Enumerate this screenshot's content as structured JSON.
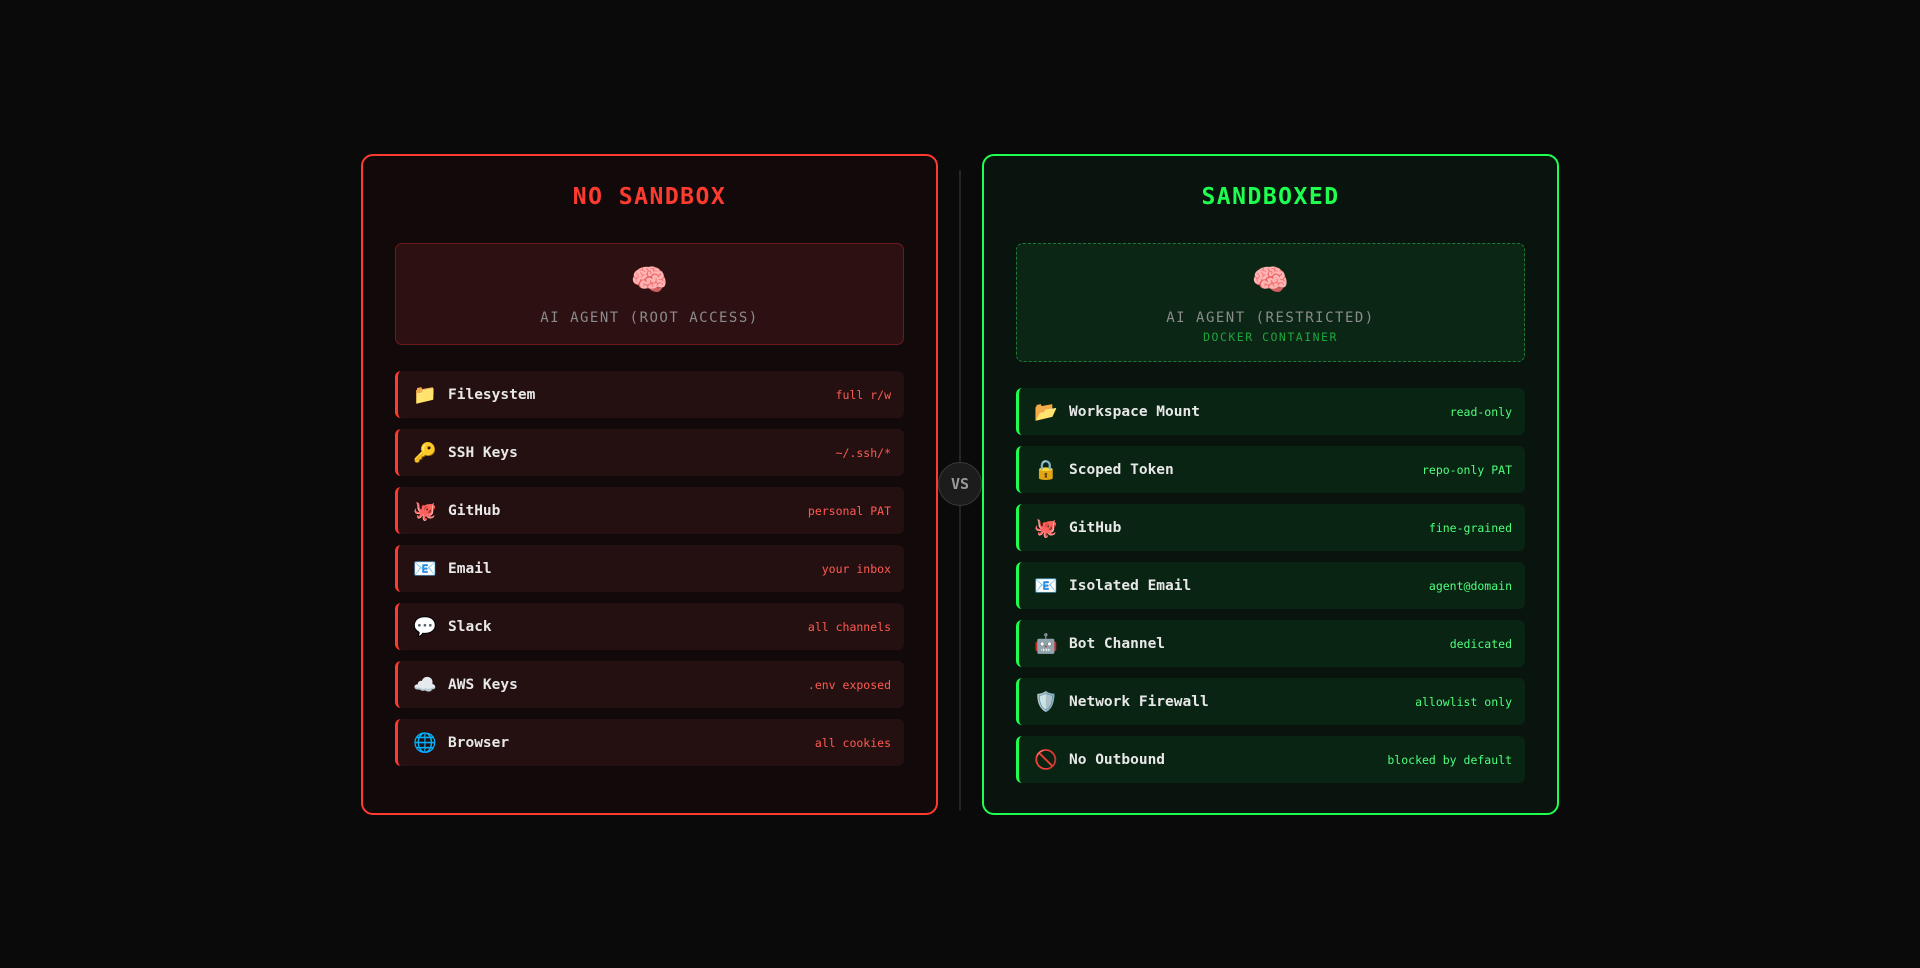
{
  "colors": {
    "danger": "#ff3b30",
    "safe": "#1eff4f",
    "background": "#0a0a0a"
  },
  "vs_label": "VS",
  "left": {
    "title": "NO SANDBOX",
    "agent": {
      "icon": "🧠",
      "icon_name": "brain-icon",
      "label": "AI AGENT (ROOT ACCESS)"
    },
    "items": [
      {
        "icon": "📁",
        "icon_name": "folder-icon",
        "name": "Filesystem",
        "value": "full r/w"
      },
      {
        "icon": "🔑",
        "icon_name": "key-icon",
        "name": "SSH Keys",
        "value": "~/.ssh/*"
      },
      {
        "icon": "🐙",
        "icon_name": "octopus-icon",
        "name": "GitHub",
        "value": "personal PAT"
      },
      {
        "icon": "📧",
        "icon_name": "email-icon",
        "name": "Email",
        "value": "your inbox"
      },
      {
        "icon": "💬",
        "icon_name": "speech-bubble-icon",
        "name": "Slack",
        "value": "all channels"
      },
      {
        "icon": "☁️",
        "icon_name": "cloud-icon",
        "name": "AWS Keys",
        "value": ".env exposed"
      },
      {
        "icon": "🌐",
        "icon_name": "globe-icon",
        "name": "Browser",
        "value": "all cookies"
      }
    ]
  },
  "right": {
    "title": "SANDBOXED",
    "agent": {
      "icon": "🧠",
      "icon_name": "brain-icon",
      "label": "AI AGENT (RESTRICTED)",
      "sublabel": "DOCKER CONTAINER"
    },
    "items": [
      {
        "icon": "📂",
        "icon_name": "open-folder-icon",
        "name": "Workspace Mount",
        "value": "read-only"
      },
      {
        "icon": "🔒",
        "icon_name": "lock-icon",
        "name": "Scoped Token",
        "value": "repo-only PAT"
      },
      {
        "icon": "🐙",
        "icon_name": "octopus-icon",
        "name": "GitHub",
        "value": "fine-grained"
      },
      {
        "icon": "📧",
        "icon_name": "email-icon",
        "name": "Isolated Email",
        "value": "agent@domain"
      },
      {
        "icon": "🤖",
        "icon_name": "robot-icon",
        "name": "Bot Channel",
        "value": "dedicated"
      },
      {
        "icon": "🛡️",
        "icon_name": "shield-icon",
        "name": "Network Firewall",
        "value": "allowlist only"
      },
      {
        "icon": "🚫",
        "icon_name": "prohibited-icon",
        "name": "No Outbound",
        "value": "blocked by default"
      }
    ]
  }
}
